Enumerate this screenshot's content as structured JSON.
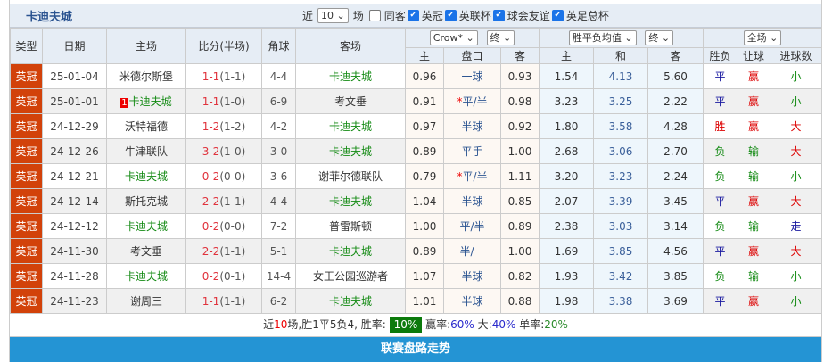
{
  "title": "卡迪夫城",
  "filters": {
    "near_label": "近",
    "count": "10",
    "games_label": "场",
    "same_venue": "同客",
    "leagues": [
      "英冠",
      "英联杯",
      "球会友谊",
      "英足总杯"
    ]
  },
  "headers": {
    "type": "类型",
    "date": "日期",
    "home": "主场",
    "score": "比分(半场)",
    "corner": "角球",
    "away": "客场",
    "company": "Crow*",
    "stage1": "终",
    "avg": "胜平负均值",
    "stage2": "终",
    "scope": "全场",
    "ah_home": "主",
    "ah_line": "盘口",
    "ah_away": "客",
    "eu_home": "主",
    "eu_draw": "和",
    "eu_away": "客",
    "result": "胜负",
    "handicap": "让球",
    "goals": "进球数"
  },
  "rows": [
    {
      "type": "英冠",
      "date": "25-01-04",
      "home": "米德尔斯堡",
      "ft": "1-1",
      "ht": "(1-1)",
      "corner": "4-4",
      "away": "卡迪夫城",
      "ah": [
        "0.96",
        "一球",
        "0.93"
      ],
      "eu": [
        "1.54",
        "4.13",
        "5.60"
      ],
      "res": "平",
      "hcp": "赢",
      "goals": "小"
    },
    {
      "type": "英冠",
      "date": "25-01-01",
      "home": "卡迪夫城",
      "red_card": "1",
      "ft": "1-1",
      "ht": "(1-0)",
      "corner": "6-9",
      "away": "考文垂",
      "ah": [
        "0.91",
        "*平/半",
        "0.98"
      ],
      "eu": [
        "3.23",
        "3.25",
        "2.22"
      ],
      "res": "平",
      "hcp": "赢",
      "goals": "小"
    },
    {
      "type": "英冠",
      "date": "24-12-29",
      "home": "沃特福德",
      "ft": "1-2",
      "ht": "(1-2)",
      "corner": "4-2",
      "away": "卡迪夫城",
      "ah": [
        "0.97",
        "半球",
        "0.92"
      ],
      "eu": [
        "1.80",
        "3.58",
        "4.28"
      ],
      "res": "胜",
      "hcp": "赢",
      "goals": "大"
    },
    {
      "type": "英冠",
      "date": "24-12-26",
      "home": "牛津联队",
      "ft": "3-2",
      "ht": "(1-0)",
      "corner": "3-0",
      "away": "卡迪夫城",
      "ah": [
        "0.89",
        "平手",
        "1.00"
      ],
      "eu": [
        "2.68",
        "3.06",
        "2.70"
      ],
      "res": "负",
      "hcp": "输",
      "goals": "大"
    },
    {
      "type": "英冠",
      "date": "24-12-21",
      "home": "卡迪夫城",
      "ft": "0-2",
      "ht": "(0-0)",
      "corner": "3-6",
      "away": "谢菲尔德联队",
      "ah": [
        "0.79",
        "*平/半",
        "1.11"
      ],
      "eu": [
        "3.20",
        "3.23",
        "2.24"
      ],
      "res": "负",
      "hcp": "输",
      "goals": "小"
    },
    {
      "type": "英冠",
      "date": "24-12-14",
      "home": "斯托克城",
      "ft": "2-2",
      "ht": "(1-1)",
      "corner": "4-4",
      "away": "卡迪夫城",
      "ah": [
        "1.04",
        "半球",
        "0.85"
      ],
      "eu": [
        "2.07",
        "3.39",
        "3.45"
      ],
      "res": "平",
      "hcp": "赢",
      "goals": "大"
    },
    {
      "type": "英冠",
      "date": "24-12-12",
      "home": "卡迪夫城",
      "ft": "0-2",
      "ht": "(0-0)",
      "corner": "7-2",
      "away": "普雷斯顿",
      "ah": [
        "1.00",
        "平/半",
        "0.89"
      ],
      "eu": [
        "2.38",
        "3.03",
        "3.14"
      ],
      "res": "负",
      "hcp": "输",
      "goals": "走"
    },
    {
      "type": "英冠",
      "date": "24-11-30",
      "home": "考文垂",
      "ft": "2-2",
      "ht": "(1-1)",
      "corner": "5-1",
      "away": "卡迪夫城",
      "ah": [
        "0.89",
        "半/一",
        "1.00"
      ],
      "eu": [
        "1.69",
        "3.85",
        "4.56"
      ],
      "res": "平",
      "hcp": "赢",
      "goals": "大"
    },
    {
      "type": "英冠",
      "date": "24-11-28",
      "home": "卡迪夫城",
      "ft": "0-2",
      "ht": "(0-1)",
      "corner": "14-4",
      "away": "女王公园巡游者",
      "ah": [
        "1.07",
        "半球",
        "0.82"
      ],
      "eu": [
        "1.93",
        "3.42",
        "3.85"
      ],
      "res": "负",
      "hcp": "输",
      "goals": "小"
    },
    {
      "type": "英冠",
      "date": "24-11-23",
      "home": "谢周三",
      "ft": "1-1",
      "ht": "(1-1)",
      "corner": "6-2",
      "away": "卡迪夫城",
      "ah": [
        "1.01",
        "半球",
        "0.88"
      ],
      "eu": [
        "1.98",
        "3.38",
        "3.69"
      ],
      "res": "平",
      "hcp": "赢",
      "goals": "小"
    }
  ],
  "summary": {
    "p1": "近",
    "n": "10",
    "p2": "场,胜1平5负4, 胜率:",
    "win_rate": "10%",
    "p3": "赢率:",
    "cover_rate": "60%",
    "p4": "大:",
    "over_rate": "40%",
    "p5": "单率:",
    "odd_rate": "20%"
  },
  "footer_title": "联赛盘路走势",
  "colors": {
    "type_badge": "#d2420a",
    "team_highlight": "#138a13",
    "footer": "#2494d4",
    "win_rate_badge": "#0b7a0b"
  }
}
